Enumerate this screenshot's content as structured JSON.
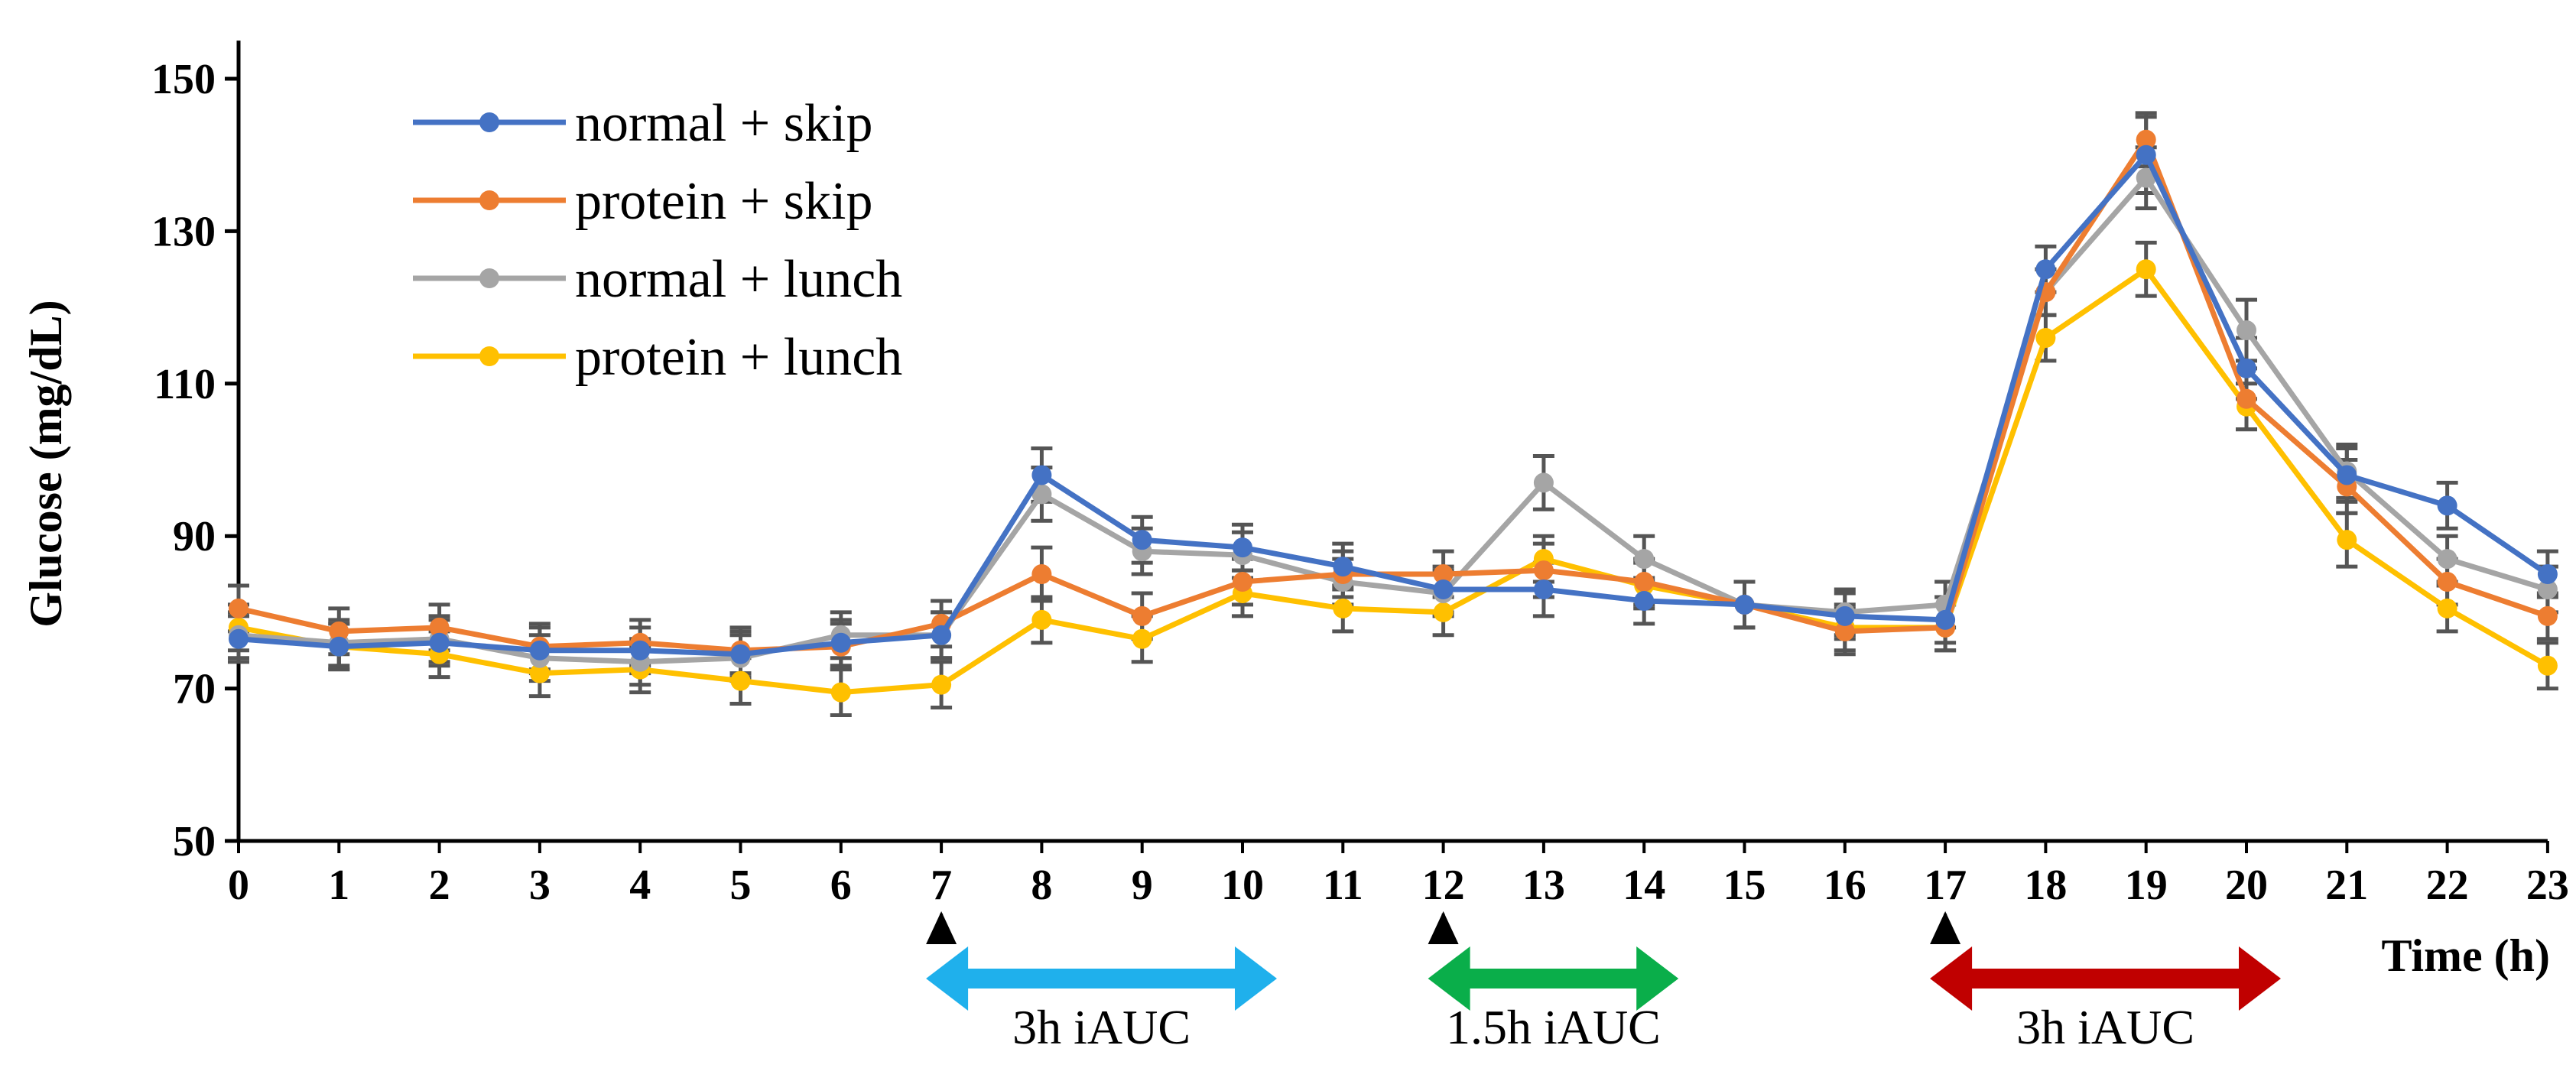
{
  "chart_data": {
    "type": "line",
    "title": "",
    "xlabel": "Time (h)",
    "ylabel": "Glucose (mg/dL)",
    "ylim": [
      50,
      155
    ],
    "yticks": [
      50,
      70,
      90,
      110,
      130,
      150
    ],
    "x": [
      0,
      1,
      2,
      3,
      4,
      5,
      6,
      7,
      8,
      9,
      10,
      11,
      12,
      13,
      14,
      15,
      16,
      17,
      18,
      19,
      20,
      21,
      22,
      23
    ],
    "legend_position": "top-left",
    "grid": false,
    "series": [
      {
        "name": "normal + skip",
        "color": "#4472C4",
        "values": [
          76.5,
          75.5,
          76,
          75,
          75,
          74.5,
          76,
          77,
          98,
          89.5,
          88.5,
          86,
          83,
          83,
          81.5,
          81,
          79.5,
          79,
          125,
          140,
          112,
          98,
          94,
          85
        ],
        "errors": [
          3,
          3,
          3,
          3,
          3,
          3,
          3,
          3,
          3.5,
          3,
          3,
          3,
          3,
          3.5,
          3,
          3,
          3,
          3,
          3,
          5,
          4,
          3.5,
          3,
          3
        ]
      },
      {
        "name": "protein + skip",
        "color": "#ED7D31",
        "values": [
          80.5,
          77.5,
          78,
          75.5,
          76,
          75,
          75.5,
          78.5,
          85,
          79.5,
          84,
          85,
          85,
          85.5,
          84,
          81,
          77.5,
          78,
          122,
          142,
          108,
          96.5,
          84,
          79.5
        ],
        "errors": [
          3,
          3,
          3,
          3,
          3,
          3,
          3,
          3,
          3.5,
          3,
          3,
          3,
          3,
          3.5,
          3,
          3,
          3,
          3,
          3,
          3.5,
          4,
          3.5,
          3,
          3
        ]
      },
      {
        "name": "normal + lunch",
        "color": "#A5A5A5",
        "values": [
          77,
          76,
          76.5,
          74,
          73.5,
          74,
          77,
          77,
          95.5,
          88,
          87.5,
          84,
          82.5,
          97,
          87,
          81,
          80,
          81,
          122,
          137,
          117,
          98.5,
          87,
          83
        ],
        "errors": [
          3,
          3,
          3,
          3,
          3,
          3,
          3,
          3,
          3.5,
          3,
          3,
          3,
          3,
          3.5,
          3,
          3,
          3,
          3,
          3,
          4,
          4,
          3.5,
          3,
          3
        ]
      },
      {
        "name": "protein + lunch",
        "color": "#FFC000",
        "values": [
          78,
          75.5,
          74.5,
          72,
          72.5,
          71,
          69.5,
          70.5,
          79,
          76.5,
          82.5,
          80.5,
          80,
          87,
          83.5,
          81,
          78,
          78,
          116,
          125,
          107,
          89.5,
          80.5,
          73
        ],
        "errors": [
          3,
          3,
          3,
          3,
          3,
          3,
          3,
          3,
          3,
          3,
          3,
          3,
          3,
          3,
          3,
          3,
          3,
          3,
          3,
          3.5,
          3,
          3.5,
          3,
          3
        ]
      }
    ],
    "annotations": [
      {
        "label": "3h iAUC",
        "from_x": 7,
        "to_x": 10,
        "color": "#1FB0EC"
      },
      {
        "label": "1.5h iAUC",
        "from_x": 12,
        "to_x": 14,
        "color": "#0AAE4A"
      },
      {
        "label": "3h iAUC",
        "from_x": 17,
        "to_x": 20,
        "color": "#C00000"
      }
    ],
    "meal_markers": [
      7,
      12,
      17
    ]
  }
}
